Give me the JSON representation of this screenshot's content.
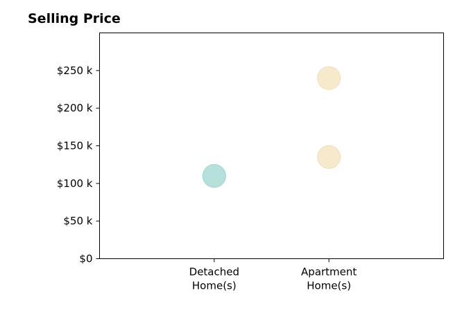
{
  "chart_data": {
    "type": "scatter",
    "title": "Selling Price",
    "xlabel": "",
    "ylabel": "",
    "categories": [
      [
        "Detached",
        "Home(s)"
      ],
      [
        "Apartment",
        "Home(s)"
      ]
    ],
    "y_ticks": [
      0,
      50000,
      100000,
      150000,
      200000,
      250000
    ],
    "y_tick_labels": [
      "$0",
      "$50 k",
      "$100 k",
      "$150 k",
      "$200 k",
      "$250 k"
    ],
    "ylim": [
      0,
      300000
    ],
    "x_range": [
      -1,
      2
    ],
    "grid": false,
    "points": [
      {
        "category_index": 0,
        "value": 110000,
        "fill": "#b6e0dc",
        "stroke": "#9fd3ce"
      },
      {
        "category_index": 1,
        "value": 135000,
        "fill": "#f6e9cc",
        "stroke": "#f0dfb8"
      },
      {
        "category_index": 1,
        "value": 240000,
        "fill": "#f6e9cc",
        "stroke": "#f0dfb8"
      }
    ]
  }
}
